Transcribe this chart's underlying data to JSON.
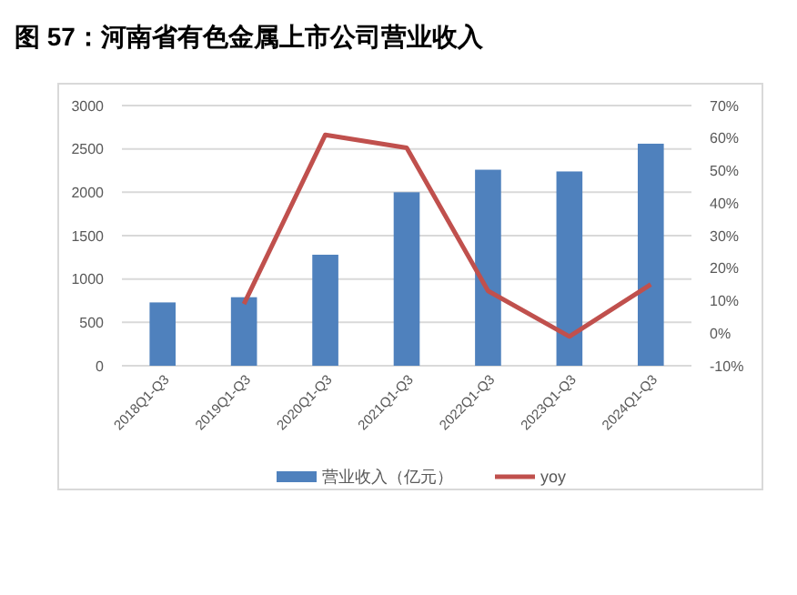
{
  "chart_data": {
    "type": "bar",
    "title": "图 57：河南省有色金属上市公司营业收入",
    "categories": [
      "2018Q1-Q3",
      "2019Q1-Q3",
      "2020Q1-Q3",
      "2021Q1-Q3",
      "2022Q1-Q3",
      "2023Q1-Q3",
      "2024Q1-Q3"
    ],
    "series": [
      {
        "name": "营业收入（亿元）",
        "color": "#4f81bd",
        "values": [
          730,
          790,
          1280,
          2000,
          2260,
          2240,
          2560
        ]
      },
      {
        "name": "yoy",
        "type": "line",
        "axis": "y2",
        "color": "#c0504d",
        "values": [
          null,
          9,
          61,
          57,
          13,
          -1,
          15
        ]
      }
    ],
    "ylim": [
      0,
      3000
    ],
    "yticks": [
      0,
      500,
      1000,
      1500,
      2000,
      2500,
      3000
    ],
    "y2lim": [
      -10,
      70
    ],
    "y2ticks": [
      {
        "value": -10,
        "label": "-10%"
      },
      {
        "value": 0,
        "label": "0%"
      },
      {
        "value": 10,
        "label": "10%"
      },
      {
        "value": 20,
        "label": "20%"
      },
      {
        "value": 30,
        "label": "30%"
      },
      {
        "value": 40,
        "label": "40%"
      },
      {
        "value": 50,
        "label": "50%"
      },
      {
        "value": 60,
        "label": "60%"
      },
      {
        "value": 70,
        "label": "70%"
      }
    ],
    "grid": "y",
    "legend": "bottom"
  }
}
